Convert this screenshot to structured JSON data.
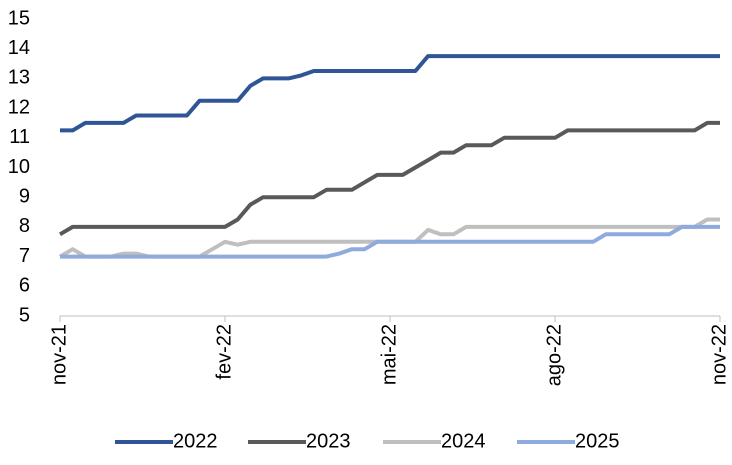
{
  "chart_data": {
    "type": "line",
    "categories": [
      "nov-21",
      null,
      null,
      null,
      null,
      null,
      null,
      null,
      null,
      null,
      null,
      null,
      null,
      "fev-22",
      null,
      null,
      null,
      null,
      null,
      null,
      null,
      null,
      null,
      null,
      null,
      null,
      "mai-22",
      null,
      null,
      null,
      null,
      null,
      null,
      null,
      null,
      null,
      null,
      null,
      null,
      "ago-22",
      null,
      null,
      null,
      null,
      null,
      null,
      null,
      null,
      null,
      null,
      null,
      null,
      "nov-22"
    ],
    "series": [
      {
        "name": "2022",
        "color": "#2f5597",
        "values": [
          11.25,
          11.25,
          11.5,
          11.5,
          11.5,
          11.5,
          11.75,
          11.75,
          11.75,
          11.75,
          11.75,
          12.25,
          12.25,
          12.25,
          12.25,
          12.75,
          13,
          13,
          13,
          13.1,
          13.25,
          13.25,
          13.25,
          13.25,
          13.25,
          13.25,
          13.25,
          13.25,
          13.25,
          13.75,
          13.75,
          13.75,
          13.75,
          13.75,
          13.75,
          13.75,
          13.75,
          13.75,
          13.75,
          13.75,
          13.75,
          13.75,
          13.75,
          13.75,
          13.75,
          13.75,
          13.75,
          13.75,
          13.75,
          13.75,
          13.75,
          13.75,
          13.75
        ]
      },
      {
        "name": "2023",
        "color": "#595959",
        "values": [
          7.75,
          8,
          8,
          8,
          8,
          8,
          8,
          8,
          8,
          8,
          8,
          8,
          8,
          8,
          8.25,
          8.75,
          9,
          9,
          9,
          9,
          9,
          9.25,
          9.25,
          9.25,
          9.5,
          9.75,
          9.75,
          9.75,
          10,
          10.25,
          10.5,
          10.5,
          10.75,
          10.75,
          10.75,
          11,
          11,
          11,
          11,
          11,
          11.25,
          11.25,
          11.25,
          11.25,
          11.25,
          11.25,
          11.25,
          11.25,
          11.25,
          11.25,
          11.25,
          11.5,
          11.5
        ]
      },
      {
        "name": "2024",
        "color": "#bfbfbf",
        "values": [
          7,
          7.25,
          7,
          7,
          7,
          7.1,
          7.1,
          7,
          7,
          7,
          7,
          7,
          7.25,
          7.5,
          7.4,
          7.5,
          7.5,
          7.5,
          7.5,
          7.5,
          7.5,
          7.5,
          7.5,
          7.5,
          7.5,
          7.5,
          7.5,
          7.5,
          7.5,
          7.9,
          7.75,
          7.75,
          8,
          8,
          8,
          8,
          8,
          8,
          8,
          8,
          8,
          8,
          8,
          8,
          8,
          8,
          8,
          8,
          8,
          8,
          8,
          8.25,
          8.25
        ]
      },
      {
        "name": "2025",
        "color": "#8faadc",
        "values": [
          7,
          7,
          7,
          7,
          7,
          7,
          7,
          7,
          7,
          7,
          7,
          7,
          7,
          7,
          7,
          7,
          7,
          7,
          7,
          7,
          7,
          7,
          7.1,
          7.25,
          7.25,
          7.5,
          7.5,
          7.5,
          7.5,
          7.5,
          7.5,
          7.5,
          7.5,
          7.5,
          7.5,
          7.5,
          7.5,
          7.5,
          7.5,
          7.5,
          7.5,
          7.5,
          7.5,
          7.75,
          7.75,
          7.75,
          7.75,
          7.75,
          7.75,
          8,
          8,
          8,
          8
        ]
      }
    ],
    "ylim": [
      5,
      15
    ],
    "yticks": [
      5,
      6,
      7,
      8,
      9,
      10,
      11,
      12,
      13,
      14,
      15
    ],
    "grid": false,
    "legend": "bottom"
  }
}
